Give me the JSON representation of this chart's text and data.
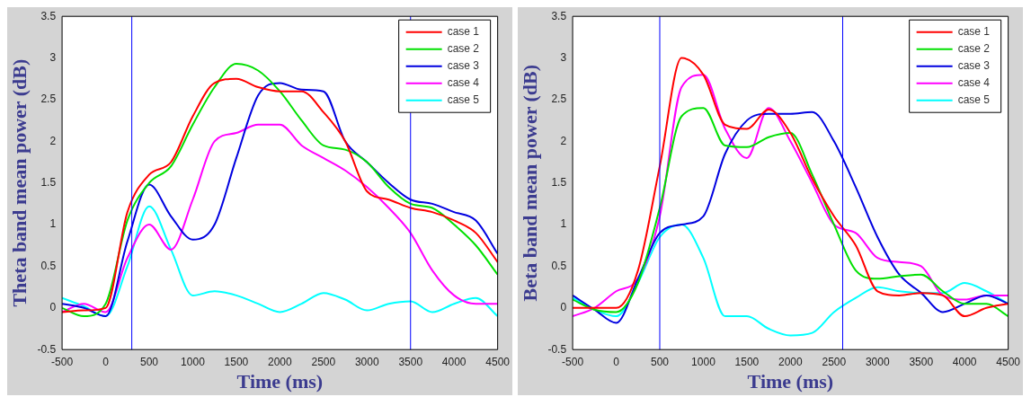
{
  "chart_data": [
    {
      "type": "line",
      "xlabel": "Time (ms)",
      "ylabel": "Theta band mean power (dB)",
      "x": [
        -500,
        -250,
        0,
        250,
        500,
        750,
        1000,
        1250,
        1500,
        1750,
        2000,
        2250,
        2500,
        2750,
        3000,
        3250,
        3500,
        3750,
        4000,
        4250,
        4500
      ],
      "series": [
        {
          "name": "case 1",
          "color": "#ff0000",
          "values": [
            -0.05,
            -0.03,
            0.0,
            1.15,
            1.6,
            1.75,
            2.3,
            2.7,
            2.75,
            2.65,
            2.6,
            2.6,
            2.35,
            2.0,
            1.4,
            1.3,
            1.2,
            1.15,
            1.05,
            0.9,
            0.55
          ]
        },
        {
          "name": "case 2",
          "color": "#00e000",
          "values": [
            0.0,
            -0.1,
            0.05,
            1.05,
            1.5,
            1.7,
            2.2,
            2.65,
            2.93,
            2.85,
            2.6,
            2.25,
            1.95,
            1.9,
            1.75,
            1.45,
            1.25,
            1.2,
            1.0,
            0.75,
            0.4
          ]
        },
        {
          "name": "case 3",
          "color": "#0000e0",
          "values": [
            0.05,
            0.0,
            -0.1,
            0.8,
            1.48,
            1.1,
            0.82,
            1.0,
            1.8,
            2.55,
            2.7,
            2.62,
            2.6,
            2.0,
            1.75,
            1.5,
            1.3,
            1.25,
            1.15,
            1.05,
            0.65
          ]
        },
        {
          "name": "case 4",
          "color": "#ff00ff",
          "values": [
            -0.05,
            0.05,
            -0.05,
            0.6,
            1.0,
            0.7,
            1.3,
            2.0,
            2.1,
            2.2,
            2.2,
            1.95,
            1.8,
            1.65,
            1.45,
            1.2,
            0.9,
            0.45,
            0.15,
            0.05,
            0.05
          ]
        },
        {
          "name": "case 5",
          "color": "#00ffff",
          "values": [
            0.12,
            0.02,
            -0.1,
            0.5,
            1.22,
            0.7,
            0.15,
            0.2,
            0.15,
            0.05,
            -0.05,
            0.05,
            0.18,
            0.1,
            -0.03,
            0.05,
            0.08,
            -0.05,
            0.05,
            0.12,
            -0.1
          ]
        }
      ],
      "xlim": [
        -500,
        4500
      ],
      "xticks": [
        -500,
        0,
        500,
        1000,
        1500,
        2000,
        2500,
        3000,
        3500,
        4000,
        4500
      ],
      "ylim": [
        -0.5,
        3.5
      ],
      "yticks": [
        -0.5,
        0,
        0.5,
        1,
        1.5,
        2,
        2.5,
        3,
        3.5
      ],
      "ref_lines": [
        {
          "axis": "x",
          "value": 300,
          "color": "#0000ff"
        },
        {
          "axis": "x",
          "value": 3500,
          "color": "#0000ff"
        }
      ],
      "grid": false,
      "legend": "top right",
      "marker": "none",
      "line_style": "solid"
    },
    {
      "type": "line",
      "xlabel": "Time (ms)",
      "ylabel": "Beta band mean power (dB)",
      "x": [
        -500,
        -250,
        0,
        250,
        500,
        750,
        1000,
        1250,
        1500,
        1750,
        2000,
        2250,
        2500,
        2750,
        3000,
        3250,
        3500,
        3750,
        4000,
        4250,
        4500
      ],
      "series": [
        {
          "name": "case 1",
          "color": "#ff0000",
          "values": [
            0.0,
            0.0,
            0.0,
            0.45,
            1.7,
            3.0,
            2.8,
            2.2,
            2.15,
            2.38,
            2.1,
            1.55,
            1.1,
            0.75,
            0.2,
            0.15,
            0.18,
            0.15,
            -0.1,
            0.0,
            0.05
          ]
        },
        {
          "name": "case 2",
          "color": "#00e000",
          "values": [
            0.1,
            -0.02,
            -0.05,
            0.3,
            1.2,
            2.3,
            2.4,
            1.95,
            1.93,
            2.05,
            2.1,
            1.6,
            1.0,
            0.45,
            0.35,
            0.38,
            0.4,
            0.2,
            0.05,
            0.05,
            -0.1
          ]
        },
        {
          "name": "case 3",
          "color": "#0000e0",
          "values": [
            0.15,
            -0.02,
            -0.18,
            0.35,
            0.9,
            1.0,
            1.1,
            1.85,
            2.25,
            2.33,
            2.33,
            2.35,
            2.0,
            1.45,
            0.85,
            0.4,
            0.18,
            -0.05,
            0.05,
            0.15,
            0.05
          ]
        },
        {
          "name": "case 4",
          "color": "#ff00ff",
          "values": [
            -0.1,
            0.0,
            0.2,
            0.35,
            1.1,
            2.65,
            2.8,
            2.15,
            1.8,
            2.4,
            2.0,
            1.5,
            1.0,
            0.9,
            0.6,
            0.55,
            0.5,
            0.15,
            0.1,
            0.15,
            0.15
          ]
        },
        {
          "name": "case 5",
          "color": "#00ffff",
          "values": [
            0.12,
            -0.02,
            -0.1,
            0.3,
            0.85,
            1.0,
            0.6,
            -0.1,
            -0.1,
            -0.25,
            -0.33,
            -0.3,
            -0.05,
            0.12,
            0.25,
            0.2,
            0.18,
            0.18,
            0.3,
            0.2,
            0.05
          ]
        }
      ],
      "xlim": [
        -500,
        4500
      ],
      "xticks": [
        -500,
        0,
        500,
        1000,
        1500,
        2000,
        2500,
        3000,
        3500,
        4000,
        4500
      ],
      "ylim": [
        -0.5,
        3.5
      ],
      "yticks": [
        -0.5,
        0,
        0.5,
        1,
        1.5,
        2,
        2.5,
        3,
        3.5
      ],
      "ref_lines": [
        {
          "axis": "x",
          "value": 500,
          "color": "#0000ff"
        },
        {
          "axis": "x",
          "value": 2600,
          "color": "#0000ff"
        }
      ],
      "grid": false,
      "legend": "top right",
      "marker": "none",
      "line_style": "solid"
    }
  ]
}
